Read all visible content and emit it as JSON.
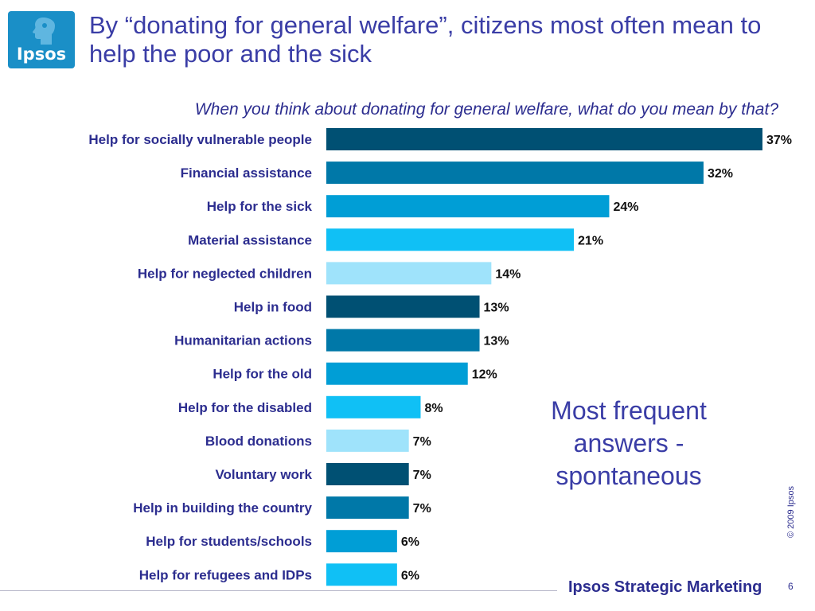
{
  "logo": {
    "text": "Ipsos"
  },
  "title": "By “donating for general welfare”, citizens most often mean to help the poor and the sick",
  "subtitle": "When you think about donating for general welfare, what do you mean by that?",
  "note": "Most frequent answers - spontaneous",
  "copyright": "© 2009 Ipsos",
  "brand": "Ipsos Strategic Marketing",
  "page_number": "6",
  "palette": [
    "#005073",
    "#0078a8",
    "#009ed6",
    "#10c0f5",
    "#9fe3fb"
  ],
  "chart_data": {
    "type": "bar",
    "orientation": "horizontal",
    "categories": [
      "Help for socially vulnerable people",
      "Financial assistance",
      "Help for the sick",
      "Material assistance",
      "Help for neglected children",
      "Help in food",
      "Humanitarian actions",
      "Help for the old",
      "Help for the disabled",
      "Blood donations",
      "Voluntary work",
      "Help in building the country",
      "Help for students/schools",
      "Help for refugees and IDPs"
    ],
    "values": [
      37,
      32,
      24,
      21,
      14,
      13,
      13,
      12,
      8,
      7,
      7,
      7,
      6,
      6
    ],
    "value_labels": [
      "37%",
      "32%",
      "24%",
      "21%",
      "14%",
      "13%",
      "13%",
      "12%",
      "8%",
      "7%",
      "7%",
      "7%",
      "6%",
      "6%"
    ],
    "xlim": [
      0,
      37
    ],
    "grid": false
  }
}
